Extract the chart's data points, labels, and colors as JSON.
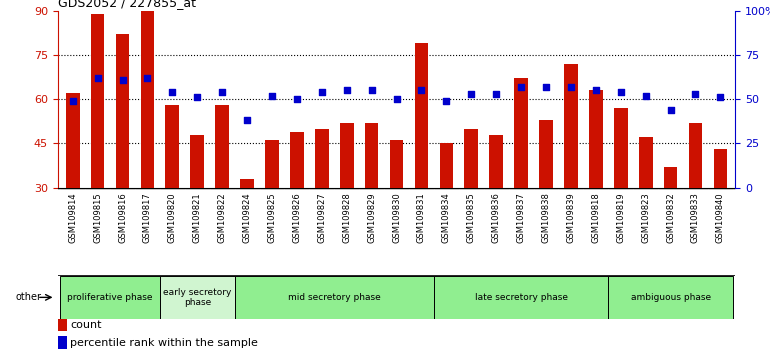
{
  "title": "GDS2052 / 227855_at",
  "samples": [
    "GSM109814",
    "GSM109815",
    "GSM109816",
    "GSM109817",
    "GSM109820",
    "GSM109821",
    "GSM109822",
    "GSM109824",
    "GSM109825",
    "GSM109826",
    "GSM109827",
    "GSM109828",
    "GSM109829",
    "GSM109830",
    "GSM109831",
    "GSM109834",
    "GSM109835",
    "GSM109836",
    "GSM109837",
    "GSM109838",
    "GSM109839",
    "GSM109818",
    "GSM109819",
    "GSM109823",
    "GSM109832",
    "GSM109833",
    "GSM109840"
  ],
  "counts": [
    62,
    89,
    82,
    90,
    58,
    48,
    58,
    33,
    46,
    49,
    50,
    52,
    52,
    46,
    79,
    45,
    50,
    48,
    67,
    53,
    72,
    63,
    57,
    47,
    37,
    52,
    43
  ],
  "percentiles": [
    49,
    62,
    61,
    62,
    54,
    51,
    54,
    38,
    52,
    50,
    54,
    55,
    55,
    50,
    55,
    49,
    53,
    53,
    57,
    57,
    57,
    55,
    54,
    52,
    44,
    53,
    51
  ],
  "phases": [
    {
      "name": "proliferative phase",
      "color": "#90ee90",
      "start": 0,
      "end": 4
    },
    {
      "name": "early secretory\nphase",
      "color": "#d0f5d0",
      "start": 4,
      "end": 7
    },
    {
      "name": "mid secretory phase",
      "color": "#90ee90",
      "start": 7,
      "end": 15
    },
    {
      "name": "late secretory phase",
      "color": "#90ee90",
      "start": 15,
      "end": 22
    },
    {
      "name": "ambiguous phase",
      "color": "#90ee90",
      "start": 22,
      "end": 27
    }
  ],
  "bar_color": "#cc1100",
  "dot_color": "#0000cc",
  "ylim_left": [
    30,
    90
  ],
  "ylim_right": [
    0,
    100
  ],
  "yticks_left": [
    30,
    45,
    60,
    75,
    90
  ],
  "yticks_right": [
    0,
    25,
    50,
    75,
    100
  ],
  "ytick_labels_right": [
    "0",
    "25",
    "50",
    "75",
    "100%"
  ],
  "bar_width": 0.55,
  "tick_bg_color": "#d0d0d0"
}
